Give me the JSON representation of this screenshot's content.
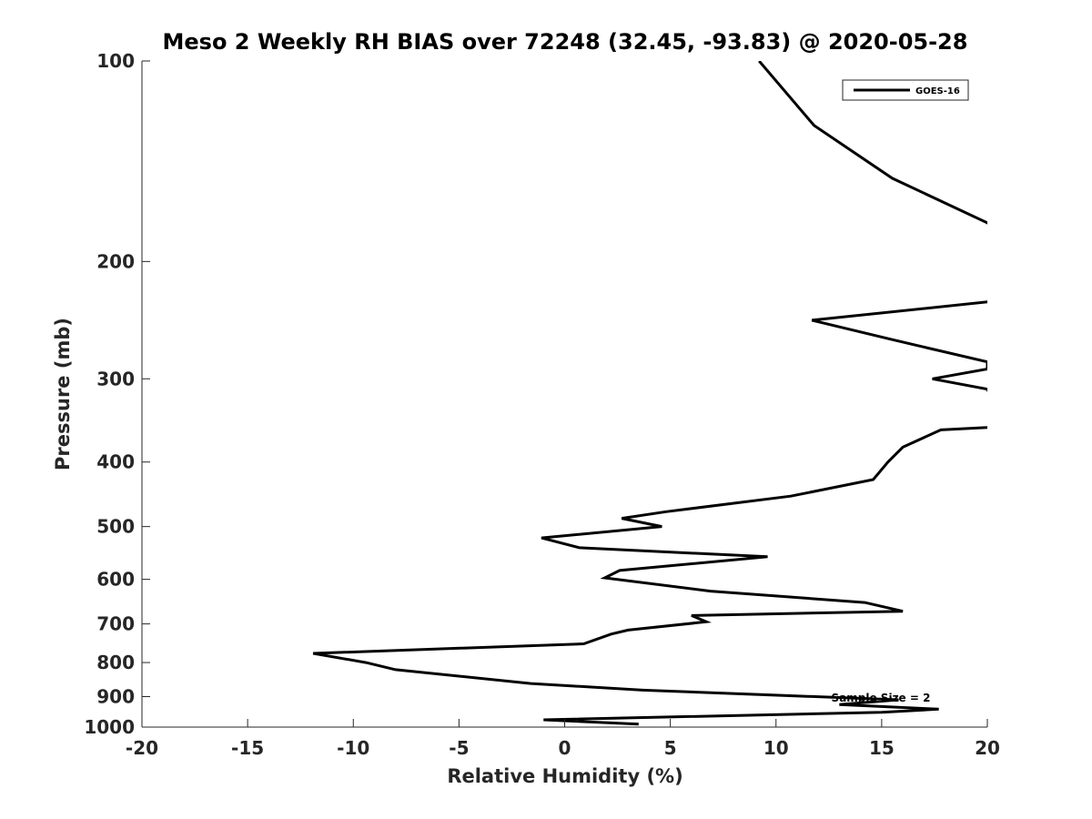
{
  "chart_data": {
    "type": "line",
    "title": "Meso 2 Weekly RH BIAS over 72248 (32.45, -93.83) @ 2020-05-28",
    "xlabel": "Relative Humidity (%)",
    "ylabel": "Pressure (mb)",
    "xlim": [
      -20,
      20
    ],
    "ylim": [
      100,
      1000
    ],
    "y_scale": "log",
    "y_reversed": true,
    "x_ticks": [
      -20,
      -15,
      -10,
      -5,
      0,
      5,
      10,
      15,
      20
    ],
    "x_tick_labels": [
      "-20",
      "-15",
      "-10",
      "-5",
      "0",
      "5",
      "10",
      "15",
      "20"
    ],
    "y_ticks": [
      100,
      200,
      300,
      400,
      500,
      600,
      700,
      800,
      900,
      1000
    ],
    "y_tick_labels": [
      "100",
      "200",
      "300",
      "400",
      "500",
      "600",
      "700",
      "800",
      "900",
      "1000"
    ],
    "grid": false,
    "legend_position": "top-right",
    "annotation": "Sample Size = 2",
    "series": [
      {
        "name": "GOES-16",
        "color": "#000000",
        "points": [
          [
            9.2,
            100
          ],
          [
            11.8,
            125
          ],
          [
            15.5,
            150
          ],
          [
            20,
            175
          ],
          [
            20.5,
            180
          ],
          [
            20.5,
            225
          ],
          [
            20,
            230
          ],
          [
            11.7,
            245
          ],
          [
            15.5,
            262
          ],
          [
            20,
            283
          ],
          [
            20,
            290
          ],
          [
            17.4,
            300
          ],
          [
            20,
            311
          ],
          [
            20.4,
            330
          ],
          [
            20.4,
            350
          ],
          [
            20,
            355
          ],
          [
            17.8,
            358
          ],
          [
            16,
            380
          ],
          [
            15.3,
            400
          ],
          [
            14.6,
            425
          ],
          [
            10.7,
            450
          ],
          [
            4.8,
            475
          ],
          [
            2.7,
            486
          ],
          [
            4.6,
            500
          ],
          [
            -1.1,
            520
          ],
          [
            0.7,
            538
          ],
          [
            9.6,
            555
          ],
          [
            2.6,
            582
          ],
          [
            1.9,
            597
          ],
          [
            6.9,
            625
          ],
          [
            14.2,
            650
          ],
          [
            16,
            670
          ],
          [
            6,
            680
          ],
          [
            6.7,
            695
          ],
          [
            3,
            715
          ],
          [
            2.2,
            725
          ],
          [
            0.9,
            750
          ],
          [
            -11.9,
            775
          ],
          [
            -9.4,
            800
          ],
          [
            -8,
            820
          ],
          [
            -1.6,
            860
          ],
          [
            3.7,
            880
          ],
          [
            15.8,
            910
          ],
          [
            13,
            925
          ],
          [
            17.7,
            940
          ],
          [
            15,
            950
          ],
          [
            -1,
            975
          ],
          [
            3.5,
            990
          ]
        ]
      }
    ]
  }
}
